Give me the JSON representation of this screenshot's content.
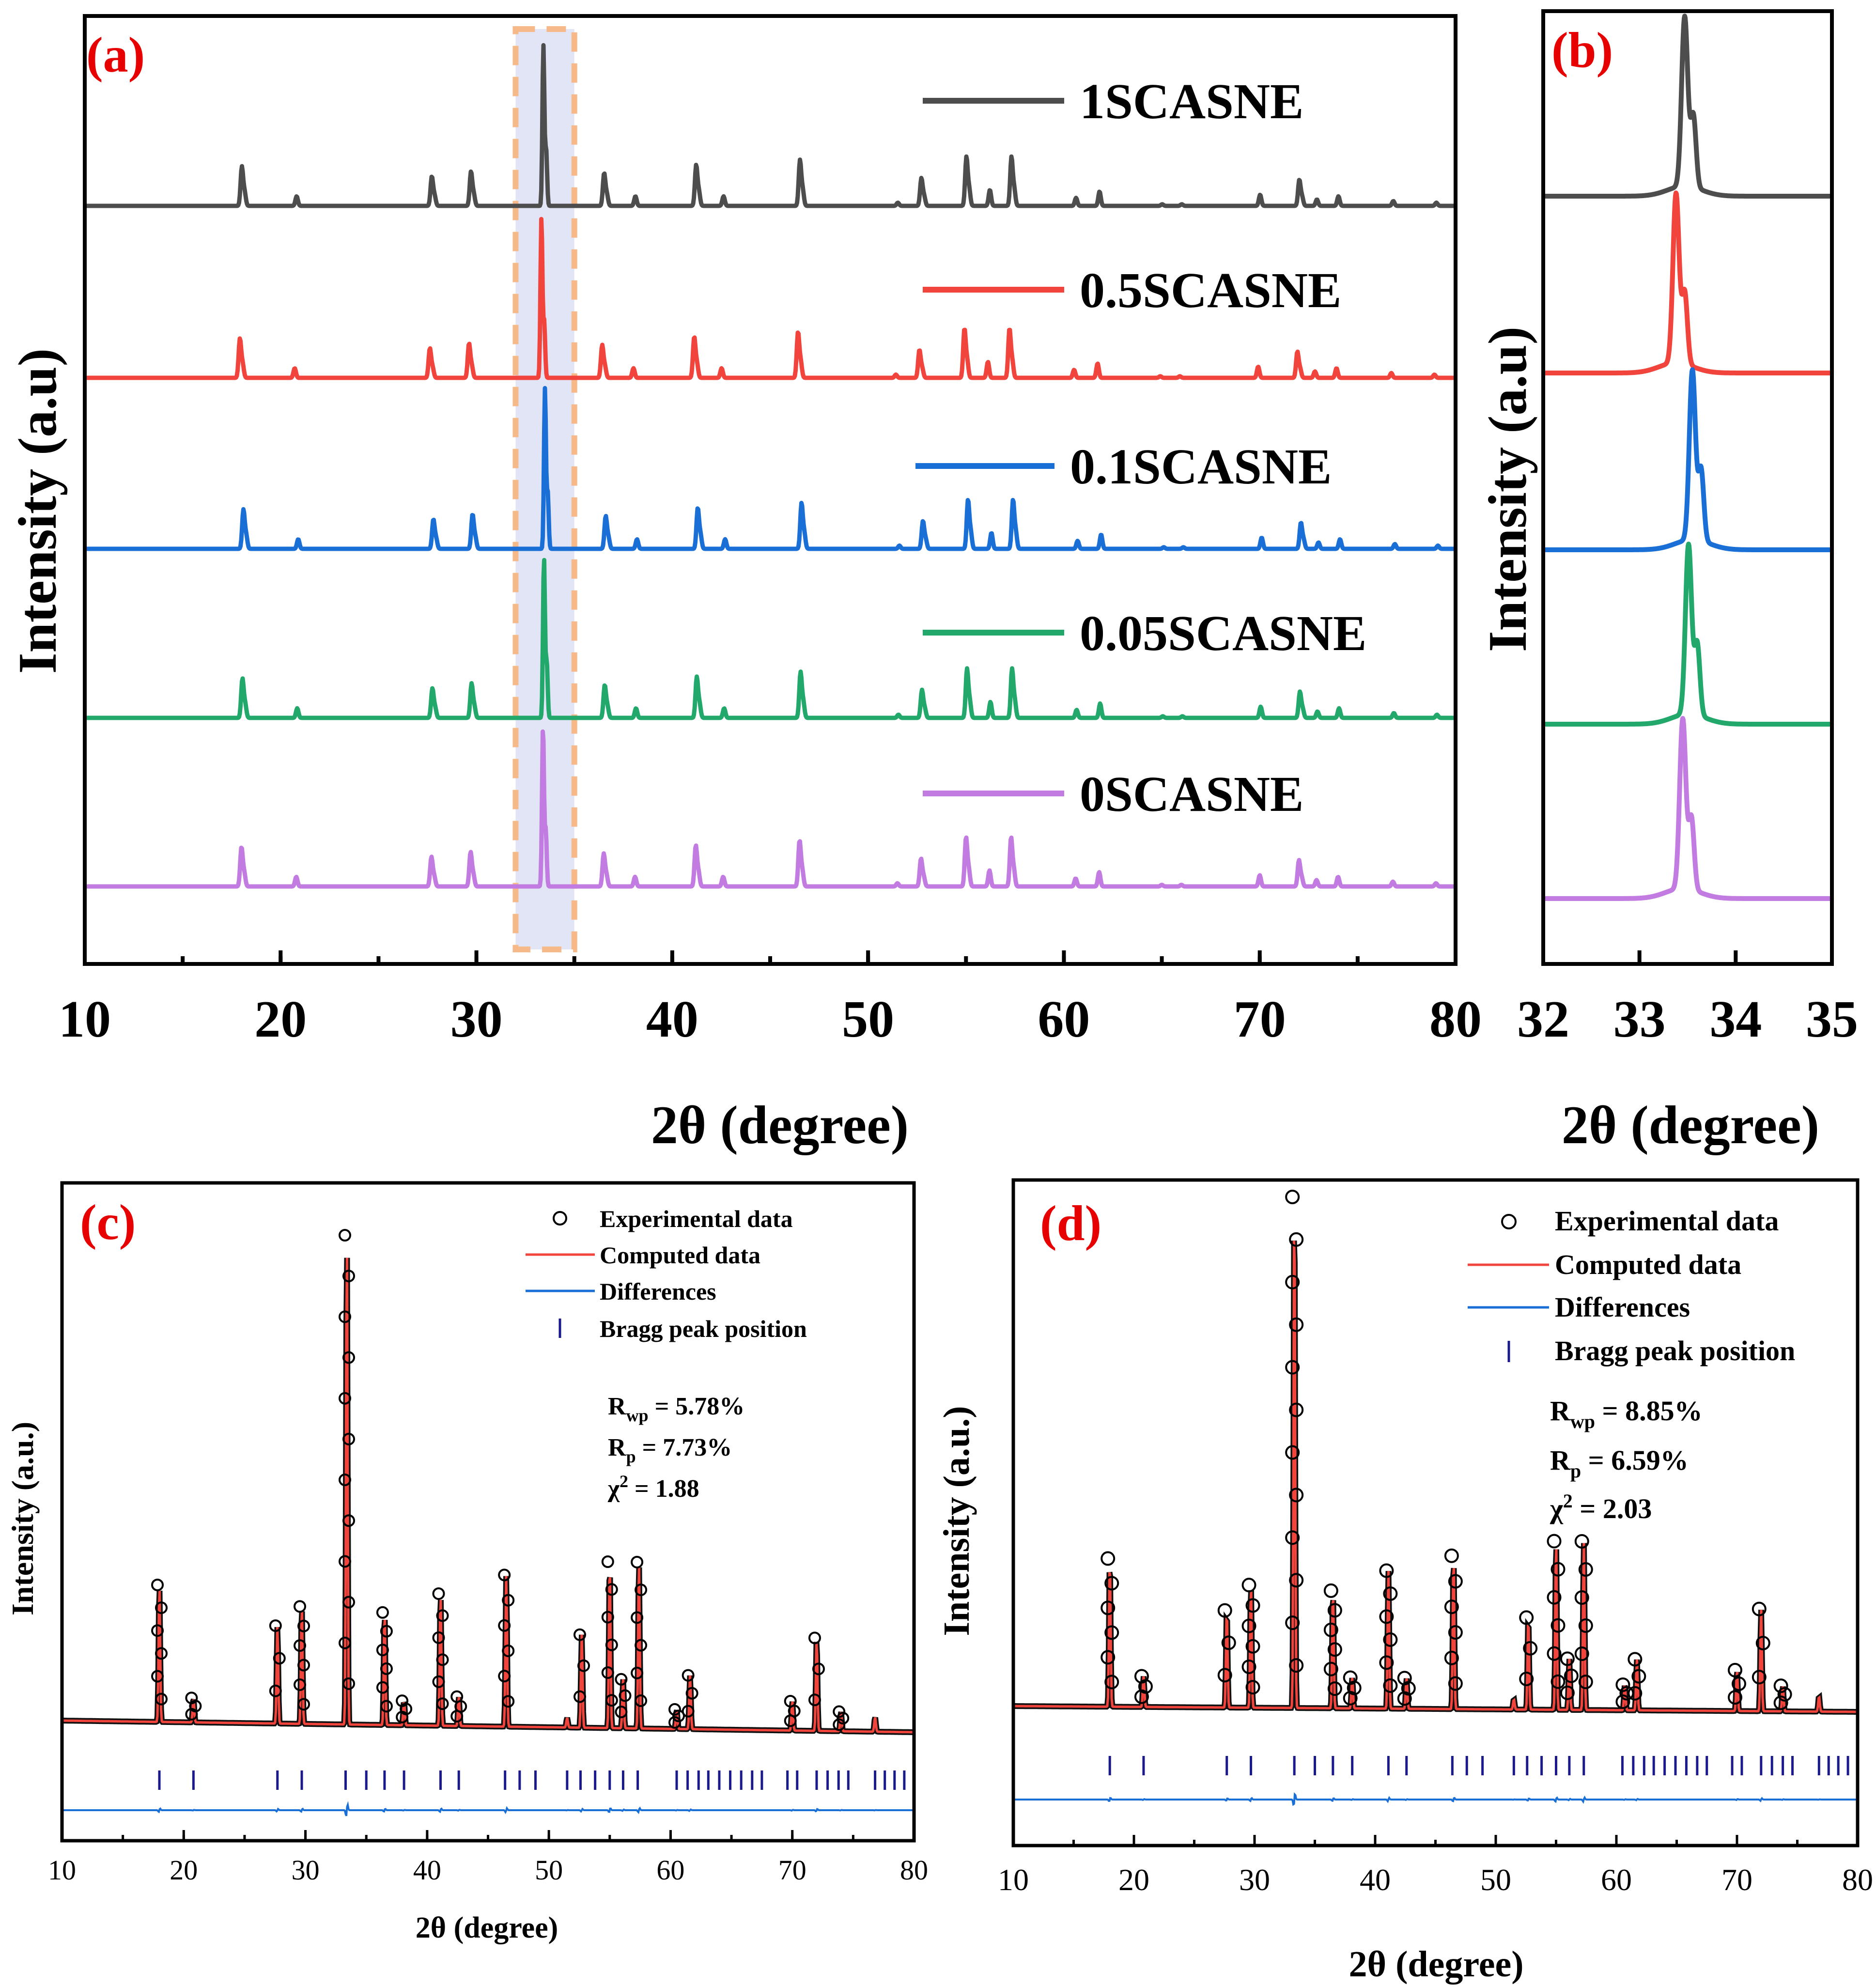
{
  "chart_data": [
    {
      "panel": "(a)",
      "type": "line",
      "title": "",
      "xlabel": "2θ (degree)",
      "ylabel": "Intensity (a.u)",
      "xlim": [
        10,
        80
      ],
      "xticks": [
        10,
        20,
        30,
        40,
        50,
        60,
        70,
        80
      ],
      "highlight_region": [
        32,
        35
      ],
      "grid": false,
      "legend": "right of each trace",
      "series": [
        {
          "name": "1SCASNE",
          "color": "#4d4d4d",
          "offset": 4,
          "peak_shift": 0.02
        },
        {
          "name": "0.5SCASNE",
          "color": "#f0443c",
          "offset": 3,
          "peak_shift": -0.08
        },
        {
          "name": "0.1SCASNE",
          "color": "#1a6fd6",
          "offset": 2,
          "peak_shift": 0.1
        },
        {
          "name": "0.05SCASNE",
          "color": "#22a86b",
          "offset": 1,
          "peak_shift": 0.05
        },
        {
          "name": "0SCASNE",
          "color": "#c27be0",
          "offset": 0,
          "peak_shift": 0
        }
      ],
      "peaks": [
        {
          "x": 18.0,
          "h": 0.24
        },
        {
          "x": 20.8,
          "h": 0.06
        },
        {
          "x": 27.7,
          "h": 0.18
        },
        {
          "x": 29.7,
          "h": 0.21
        },
        {
          "x": 33.4,
          "h": 1.0
        },
        {
          "x": 36.5,
          "h": 0.2
        },
        {
          "x": 38.1,
          "h": 0.06
        },
        {
          "x": 41.2,
          "h": 0.25
        },
        {
          "x": 42.6,
          "h": 0.06
        },
        {
          "x": 46.5,
          "h": 0.28
        },
        {
          "x": 51.5,
          "h": 0.02
        },
        {
          "x": 52.7,
          "h": 0.17
        },
        {
          "x": 55.0,
          "h": 0.3
        },
        {
          "x": 56.2,
          "h": 0.1
        },
        {
          "x": 57.3,
          "h": 0.3
        },
        {
          "x": 60.6,
          "h": 0.05
        },
        {
          "x": 61.8,
          "h": 0.09
        },
        {
          "x": 65.0,
          "h": 0.01
        },
        {
          "x": 66.0,
          "h": 0.01
        },
        {
          "x": 70.0,
          "h": 0.07
        },
        {
          "x": 72.0,
          "h": 0.16
        },
        {
          "x": 72.9,
          "h": 0.04
        },
        {
          "x": 74.0,
          "h": 0.06
        },
        {
          "x": 76.8,
          "h": 0.03
        },
        {
          "x": 79.0,
          "h": 0.02
        }
      ]
    },
    {
      "panel": "(b)",
      "type": "line",
      "title": "",
      "xlabel": "2θ  (degree)",
      "ylabel": "Intensity (a.u)",
      "xlim": [
        32,
        35
      ],
      "xticks": [
        32,
        33,
        34,
        35
      ],
      "grid": false,
      "series": [
        {
          "name": "1SCASNE",
          "color": "#4d4d4d",
          "peak_center": 33.47
        },
        {
          "name": "0.5SCASNE",
          "color": "#f0443c",
          "peak_center": 33.38
        },
        {
          "name": "0.1SCASNE",
          "color": "#1a6fd6",
          "peak_center": 33.55
        },
        {
          "name": "0.05SCASNE",
          "color": "#22a86b",
          "peak_center": 33.51
        },
        {
          "name": "0SCASNE",
          "color": "#c27be0",
          "peak_center": 33.45
        }
      ]
    },
    {
      "panel": "(c)",
      "type": "scatter",
      "title": "",
      "xlabel": "2θ (degree)",
      "ylabel": "Intensity (a.u.)",
      "xlim": [
        10,
        80
      ],
      "xticks": [
        10,
        20,
        30,
        40,
        50,
        60,
        70,
        80
      ],
      "legend": [
        "Experimental data",
        "Computed data",
        "Differences",
        "Bragg peak position"
      ],
      "stats": {
        "rwp_label": "R",
        "rwp_sub": "wp",
        "rwp_value": " = 5.78%",
        "rp_label": "R",
        "rp_sub": "p",
        "rp_value": " = 7.73%",
        "chi_label": "χ",
        "chi_sup": "2",
        "chi_value": " = 1.88"
      },
      "bragg_positions": [
        18.0,
        20.8,
        27.7,
        29.7,
        33.3,
        35.0,
        36.5,
        38.1,
        41.1,
        42.6,
        46.4,
        47.6,
        48.9,
        51.5,
        52.6,
        53.8,
        55.0,
        56.1,
        57.3,
        60.5,
        61.4,
        62.3,
        63.1,
        64.0,
        64.9,
        65.8,
        66.7,
        67.5,
        69.6,
        70.4,
        72.0,
        72.9,
        73.8,
        74.6,
        76.8,
        77.6,
        78.4,
        79.2
      ],
      "peaks": [
        {
          "x": 18.0,
          "h": 0.28
        },
        {
          "x": 20.8,
          "h": 0.05
        },
        {
          "x": 27.7,
          "h": 0.2
        },
        {
          "x": 29.7,
          "h": 0.24
        },
        {
          "x": 33.4,
          "h": 1.0
        },
        {
          "x": 36.5,
          "h": 0.23
        },
        {
          "x": 38.1,
          "h": 0.05
        },
        {
          "x": 41.1,
          "h": 0.27
        },
        {
          "x": 42.6,
          "h": 0.06
        },
        {
          "x": 46.5,
          "h": 0.31
        },
        {
          "x": 51.5,
          "h": 0.02
        },
        {
          "x": 52.7,
          "h": 0.19
        },
        {
          "x": 55.0,
          "h": 0.34
        },
        {
          "x": 56.1,
          "h": 0.1
        },
        {
          "x": 57.4,
          "h": 0.34
        },
        {
          "x": 60.5,
          "h": 0.04
        },
        {
          "x": 61.6,
          "h": 0.11
        },
        {
          "x": 70.0,
          "h": 0.06
        },
        {
          "x": 72.0,
          "h": 0.19
        },
        {
          "x": 74.0,
          "h": 0.04
        },
        {
          "x": 76.8,
          "h": 0.03
        }
      ]
    },
    {
      "panel": "(d)",
      "type": "scatter",
      "title": "",
      "xlabel": "2θ (degree)",
      "ylabel": "Intensity (a.u.)",
      "xlim": [
        10,
        80
      ],
      "xticks": [
        10,
        20,
        30,
        40,
        50,
        60,
        70,
        80
      ],
      "legend": [
        "Experimental data",
        "Computed data",
        "Differences",
        "Bragg peak position"
      ],
      "stats": {
        "rwp_label": "R",
        "rwp_sub": "wp",
        "rwp_value": " = 8.85%",
        "rp_label": "R",
        "rp_sub": "p",
        "rp_value": " = 6.59%",
        "chi_label": "χ",
        "chi_sup": "2",
        "chi_value": " = 2.03"
      },
      "bragg_positions": [
        18.0,
        20.8,
        27.7,
        29.7,
        33.3,
        35.0,
        36.5,
        38.1,
        41.1,
        42.6,
        46.4,
        47.6,
        48.9,
        51.5,
        52.6,
        53.8,
        55.0,
        56.1,
        57.3,
        60.5,
        61.4,
        62.3,
        63.1,
        64.0,
        64.9,
        65.8,
        66.7,
        67.5,
        69.6,
        70.4,
        72.0,
        72.9,
        73.8,
        74.6,
        76.8,
        77.6,
        78.4,
        79.2
      ],
      "peaks": [
        {
          "x": 18.0,
          "h": 0.29
        },
        {
          "x": 20.8,
          "h": 0.06
        },
        {
          "x": 27.7,
          "h": 0.19
        },
        {
          "x": 29.7,
          "h": 0.24
        },
        {
          "x": 33.3,
          "h": 1.0
        },
        {
          "x": 36.5,
          "h": 0.23
        },
        {
          "x": 38.1,
          "h": 0.06
        },
        {
          "x": 41.1,
          "h": 0.27
        },
        {
          "x": 42.6,
          "h": 0.06
        },
        {
          "x": 46.5,
          "h": 0.3
        },
        {
          "x": 51.5,
          "h": 0.02
        },
        {
          "x": 52.7,
          "h": 0.18
        },
        {
          "x": 55.0,
          "h": 0.33
        },
        {
          "x": 56.1,
          "h": 0.1
        },
        {
          "x": 57.3,
          "h": 0.33
        },
        {
          "x": 60.7,
          "h": 0.05
        },
        {
          "x": 61.7,
          "h": 0.1
        },
        {
          "x": 70.0,
          "h": 0.08
        },
        {
          "x": 72.0,
          "h": 0.2
        },
        {
          "x": 73.8,
          "h": 0.05
        },
        {
          "x": 76.8,
          "h": 0.03
        }
      ]
    }
  ],
  "colors": {
    "panel_label": "#e60000",
    "axis": "#000000",
    "highlight_fill": "#dde0f5",
    "highlight_border": "#f5b98a",
    "computed": "#f0443c",
    "difference": "#1a6fd6",
    "bragg": "#1a1a8a"
  }
}
